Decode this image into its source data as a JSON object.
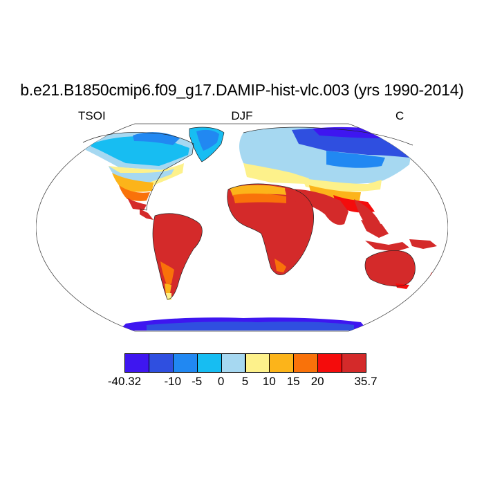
{
  "title": "b.e21.B1850cmip6.f09_g17.DAMIP-hist-vlc.003 (yrs 1990-2014)",
  "left_string": "TSOI",
  "center_string": "DJF",
  "right_string": "C",
  "colorbar": {
    "colors": [
      "#3e16f0",
      "#2f4fe0",
      "#2188f2",
      "#17bdf2",
      "#a6d8f1",
      "#fdf18b",
      "#fcb41a",
      "#f9720a",
      "#f40c0c",
      "#d42a2a"
    ],
    "labels": [
      "-40.32",
      "-10",
      "-5",
      "0",
      "5",
      "10",
      "15",
      "20",
      "35.7"
    ]
  },
  "map": {
    "projection": "Robinson",
    "ocean_color": "#ffffff",
    "land_fill": "filled contours"
  }
}
